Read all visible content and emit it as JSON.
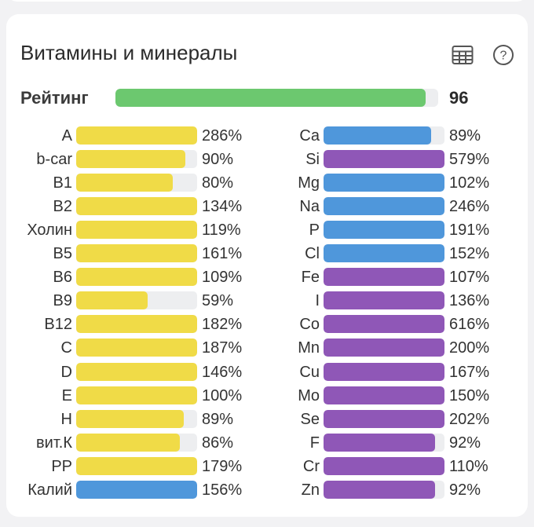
{
  "title": "Витамины и минералы",
  "icons": {
    "table": "table-icon",
    "help": "help-circle-icon"
  },
  "colors": {
    "vitamin": "#f0db47",
    "mineral_blue": "#4f97db",
    "mineral_purple": "#8f57b7",
    "rating": "#6cc86f",
    "track": "#edeef0"
  },
  "rating": {
    "label": "Рейтинг",
    "value": "96",
    "fraction": 0.96
  },
  "vitamins": [
    {
      "label": "A",
      "percent": "286%",
      "fill": 1.0,
      "color": "vitamin"
    },
    {
      "label": "b-car",
      "percent": "90%",
      "fill": 0.9,
      "color": "vitamin"
    },
    {
      "label": "B1",
      "percent": "80%",
      "fill": 0.8,
      "color": "vitamin"
    },
    {
      "label": "B2",
      "percent": "134%",
      "fill": 1.0,
      "color": "vitamin"
    },
    {
      "label": "Холин",
      "percent": "119%",
      "fill": 1.0,
      "color": "vitamin"
    },
    {
      "label": "B5",
      "percent": "161%",
      "fill": 1.0,
      "color": "vitamin"
    },
    {
      "label": "B6",
      "percent": "109%",
      "fill": 1.0,
      "color": "vitamin"
    },
    {
      "label": "B9",
      "percent": "59%",
      "fill": 0.59,
      "color": "vitamin"
    },
    {
      "label": "B12",
      "percent": "182%",
      "fill": 1.0,
      "color": "vitamin"
    },
    {
      "label": "C",
      "percent": "187%",
      "fill": 1.0,
      "color": "vitamin"
    },
    {
      "label": "D",
      "percent": "146%",
      "fill": 1.0,
      "color": "vitamin"
    },
    {
      "label": "E",
      "percent": "100%",
      "fill": 1.0,
      "color": "vitamin"
    },
    {
      "label": "H",
      "percent": "89%",
      "fill": 0.89,
      "color": "vitamin"
    },
    {
      "label": "вит.К",
      "percent": "86%",
      "fill": 0.86,
      "color": "vitamin"
    },
    {
      "label": "PP",
      "percent": "179%",
      "fill": 1.0,
      "color": "vitamin"
    },
    {
      "label": "Калий",
      "percent": "156%",
      "fill": 1.0,
      "color": "mineral_blue"
    }
  ],
  "minerals": [
    {
      "label": "Ca",
      "percent": "89%",
      "fill": 0.89,
      "color": "mineral_blue"
    },
    {
      "label": "Si",
      "percent": "579%",
      "fill": 1.0,
      "color": "mineral_purple"
    },
    {
      "label": "Mg",
      "percent": "102%",
      "fill": 1.0,
      "color": "mineral_blue"
    },
    {
      "label": "Na",
      "percent": "246%",
      "fill": 1.0,
      "color": "mineral_blue"
    },
    {
      "label": "P",
      "percent": "191%",
      "fill": 1.0,
      "color": "mineral_blue"
    },
    {
      "label": "Cl",
      "percent": "152%",
      "fill": 1.0,
      "color": "mineral_blue"
    },
    {
      "label": "Fe",
      "percent": "107%",
      "fill": 1.0,
      "color": "mineral_purple"
    },
    {
      "label": "I",
      "percent": "136%",
      "fill": 1.0,
      "color": "mineral_purple"
    },
    {
      "label": "Co",
      "percent": "616%",
      "fill": 1.0,
      "color": "mineral_purple"
    },
    {
      "label": "Mn",
      "percent": "200%",
      "fill": 1.0,
      "color": "mineral_purple"
    },
    {
      "label": "Cu",
      "percent": "167%",
      "fill": 1.0,
      "color": "mineral_purple"
    },
    {
      "label": "Mo",
      "percent": "150%",
      "fill": 1.0,
      "color": "mineral_purple"
    },
    {
      "label": "Se",
      "percent": "202%",
      "fill": 1.0,
      "color": "mineral_purple"
    },
    {
      "label": "F",
      "percent": "92%",
      "fill": 0.92,
      "color": "mineral_purple"
    },
    {
      "label": "Cr",
      "percent": "110%",
      "fill": 1.0,
      "color": "mineral_purple"
    },
    {
      "label": "Zn",
      "percent": "92%",
      "fill": 0.92,
      "color": "mineral_purple"
    }
  ]
}
